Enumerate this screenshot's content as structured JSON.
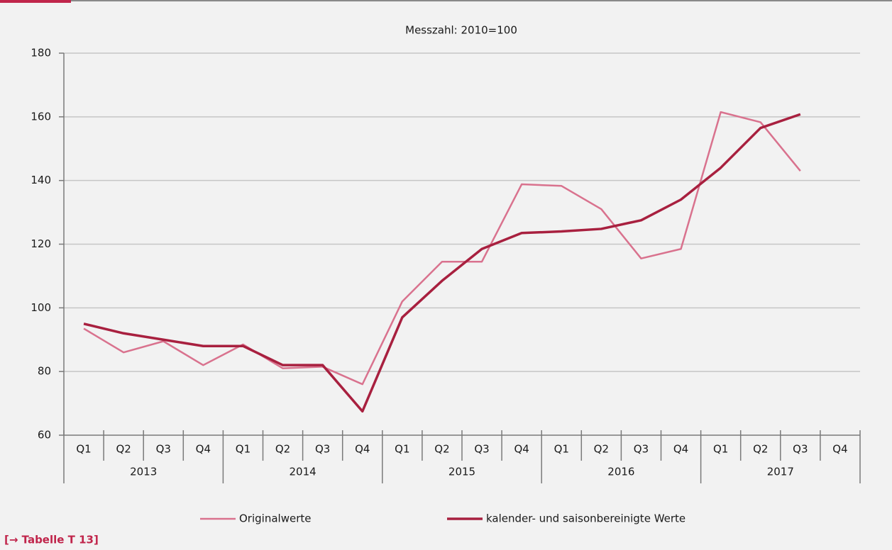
{
  "chart_data": {
    "type": "line",
    "title": "Messzahl: 2010=100",
    "categories": [
      "Q1",
      "Q2",
      "Q3",
      "Q4",
      "Q1",
      "Q2",
      "Q3",
      "Q4",
      "Q1",
      "Q2",
      "Q3",
      "Q4",
      "Q1",
      "Q2",
      "Q3",
      "Q4",
      "Q1",
      "Q2",
      "Q3",
      "Q4"
    ],
    "category_groups": [
      "2013",
      "2014",
      "2015",
      "2016",
      "2017"
    ],
    "series": [
      {
        "name": "Originalwerte",
        "color": "#d9728e",
        "values": [
          93.5,
          86,
          89.5,
          82,
          88.5,
          81,
          81.5,
          76,
          102,
          114.5,
          114.5,
          138.8,
          138.3,
          131,
          115.5,
          118.5,
          161.5,
          158.3,
          143,
          null
        ]
      },
      {
        "name": "kalender- und saisonbereinigte Werte",
        "color": "#a8203f",
        "values": [
          95,
          92,
          90,
          88,
          88,
          82,
          82,
          67.5,
          97,
          108.5,
          118.5,
          123.5,
          124,
          124.8,
          127.5,
          134,
          144,
          156.5,
          160.8,
          null
        ]
      }
    ],
    "ylim": [
      60,
      180
    ],
    "yticks": [
      60,
      80,
      100,
      120,
      140,
      160,
      180
    ],
    "grid": true,
    "footnote": "[→ Tabelle T 13]"
  }
}
